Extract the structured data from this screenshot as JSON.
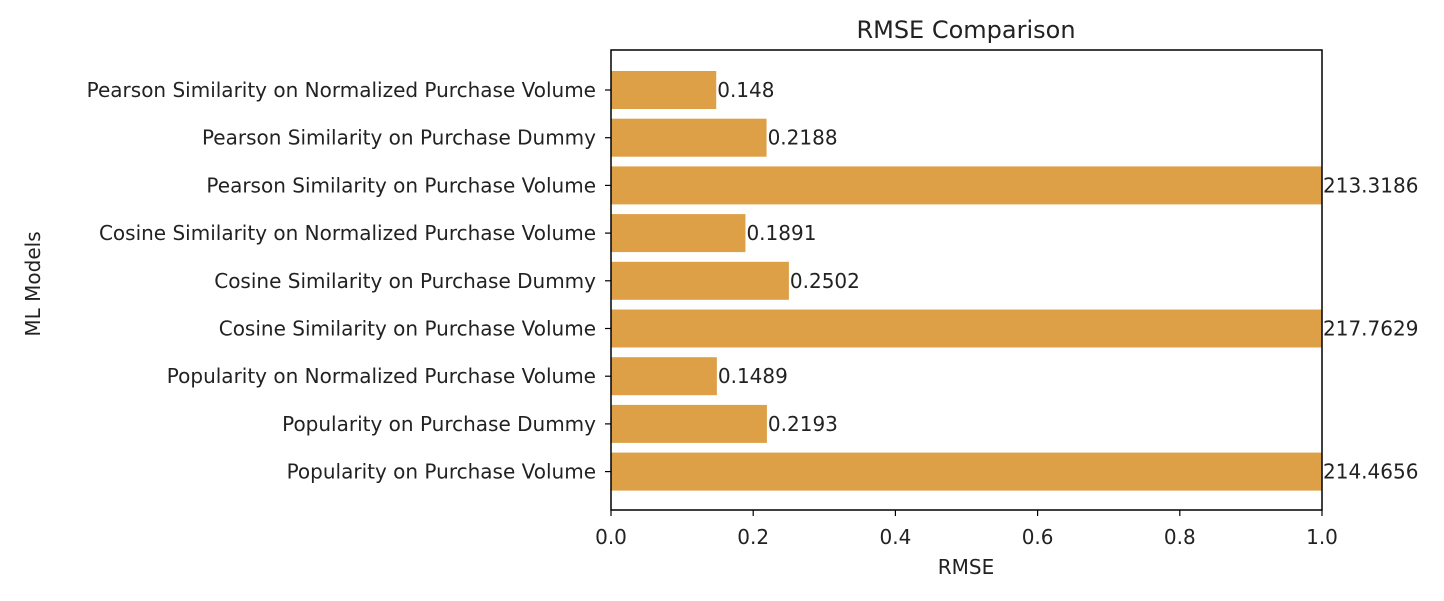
{
  "chart_data": {
    "type": "bar",
    "orientation": "horizontal",
    "title": "RMSE Comparison",
    "xlabel": "RMSE",
    "ylabel": "ML Models",
    "xlim": [
      0.0,
      1.0
    ],
    "xticks": [
      0.0,
      0.2,
      0.4,
      0.6,
      0.8,
      1.0
    ],
    "xtick_labels": [
      "0.0",
      "0.2",
      "0.4",
      "0.6",
      "0.8",
      "1.0"
    ],
    "bar_color": "#dda046",
    "categories": [
      "Pearson Similarity on Normalized Purchase Volume",
      "Pearson Similarity on Purchase Dummy",
      "Pearson Similarity on Purchase Volume",
      "Cosine Similarity on Normalized Purchase Volume",
      "Cosine Similarity on Purchase Dummy",
      "Cosine Similarity on Purchase Volume",
      "Popularity on Normalized Purchase Volume",
      "Popularity on Purchase Dummy",
      "Popularity on Purchase Volume"
    ],
    "values": [
      0.148,
      0.2188,
      213.3186,
      0.1891,
      0.2502,
      217.7629,
      0.1489,
      0.2193,
      214.4656
    ],
    "value_labels": [
      "0.148",
      "0.2188",
      "213.3186",
      "0.1891",
      "0.2502",
      "217.7629",
      "0.1489",
      "0.2193",
      "214.4656"
    ]
  }
}
